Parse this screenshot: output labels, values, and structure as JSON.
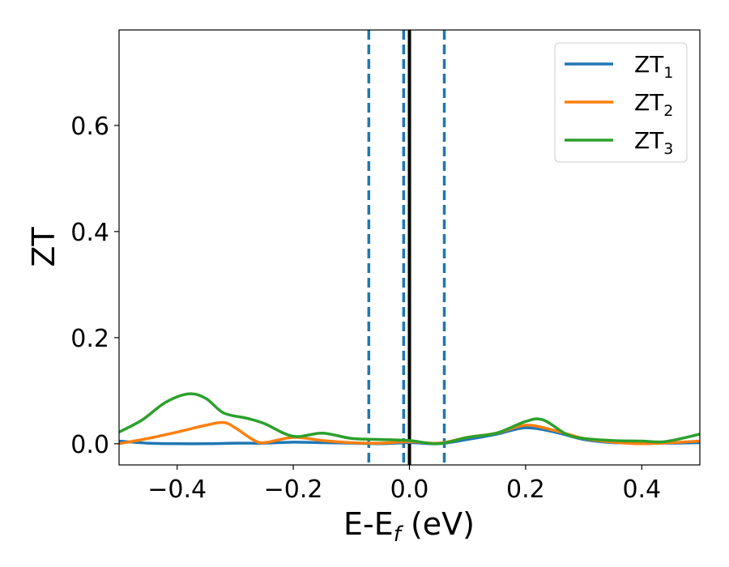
{
  "chart_data": {
    "type": "line",
    "xlabel": {
      "main": "E-E",
      "sub": "f",
      "suffix": " (eV)"
    },
    "ylabel": "ZT",
    "xlim": [
      -0.5,
      0.5
    ],
    "ylim": [
      -0.04,
      0.78
    ],
    "xticks": [
      {
        "value": -0.4,
        "label": "−0.4"
      },
      {
        "value": -0.2,
        "label": "−0.2"
      },
      {
        "value": 0.0,
        "label": "0.0"
      },
      {
        "value": 0.2,
        "label": "0.2"
      },
      {
        "value": 0.4,
        "label": "0.4"
      }
    ],
    "yticks": [
      {
        "value": 0.0,
        "label": "0.0"
      },
      {
        "value": 0.2,
        "label": "0.2"
      },
      {
        "value": 0.4,
        "label": "0.4"
      },
      {
        "value": 0.6,
        "label": "0.6"
      }
    ],
    "grid": false,
    "legend_position": "top-right",
    "vlines": [
      {
        "x": 0.0,
        "style": "solid",
        "color": "#000000"
      },
      {
        "x": -0.07,
        "style": "dashed",
        "color": "#1f77b4"
      },
      {
        "x": -0.01,
        "style": "dashed",
        "color": "#1f77b4"
      },
      {
        "x": 0.06,
        "style": "dashed",
        "color": "#1f77b4"
      }
    ],
    "series": [
      {
        "name": "ZT",
        "sub": "1",
        "color": "#1f77b4",
        "x": [
          -0.5,
          -0.45,
          -0.4,
          -0.35,
          -0.3,
          -0.25,
          -0.2,
          -0.15,
          -0.1,
          -0.05,
          0.0,
          0.05,
          0.1,
          0.15,
          0.2,
          0.25,
          0.3,
          0.35,
          0.4,
          0.45,
          0.5
        ],
        "y": [
          0.005,
          0.001,
          0.0,
          0.0,
          0.001,
          0.001,
          0.003,
          0.002,
          0.001,
          0.0,
          0.002,
          0.0,
          0.008,
          0.018,
          0.03,
          0.022,
          0.008,
          0.002,
          0.002,
          0.001,
          0.002
        ]
      },
      {
        "name": "ZT",
        "sub": "2",
        "color": "#ff7f0e",
        "x": [
          -0.5,
          -0.45,
          -0.4,
          -0.35,
          -0.32,
          -0.3,
          -0.27,
          -0.25,
          -0.2,
          -0.15,
          -0.1,
          -0.05,
          0.0,
          0.05,
          0.1,
          0.15,
          0.2,
          0.25,
          0.3,
          0.35,
          0.4,
          0.45,
          0.5
        ],
        "y": [
          0.0,
          0.01,
          0.022,
          0.035,
          0.04,
          0.03,
          0.008,
          0.002,
          0.012,
          0.006,
          0.002,
          0.001,
          0.004,
          0.001,
          0.012,
          0.02,
          0.035,
          0.025,
          0.01,
          0.003,
          0.0,
          0.002,
          0.005
        ]
      },
      {
        "name": "ZT",
        "sub": "3",
        "color": "#2ca02c",
        "x": [
          -0.5,
          -0.46,
          -0.42,
          -0.38,
          -0.35,
          -0.32,
          -0.28,
          -0.25,
          -0.2,
          -0.15,
          -0.1,
          -0.05,
          0.0,
          0.05,
          0.1,
          0.15,
          0.2,
          0.23,
          0.27,
          0.3,
          0.35,
          0.4,
          0.44,
          0.5
        ],
        "y": [
          0.022,
          0.045,
          0.078,
          0.094,
          0.085,
          0.058,
          0.048,
          0.038,
          0.014,
          0.02,
          0.01,
          0.008,
          0.006,
          0.0,
          0.012,
          0.02,
          0.042,
          0.045,
          0.018,
          0.01,
          0.006,
          0.005,
          0.004,
          0.018
        ]
      }
    ]
  }
}
